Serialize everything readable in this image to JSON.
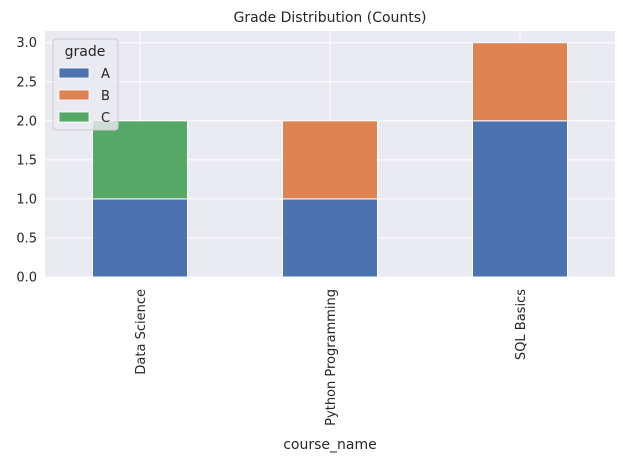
{
  "chart_data": {
    "type": "bar",
    "stacked": true,
    "title": "Grade Distribution (Counts)",
    "xlabel": "course_name",
    "ylabel": "",
    "categories": [
      "Data Science",
      "Python Programming",
      "SQL Basics"
    ],
    "series": [
      {
        "name": "A",
        "values": [
          1,
          1,
          2
        ],
        "color": "#4c72b0"
      },
      {
        "name": "B",
        "values": [
          0,
          1,
          1
        ],
        "color": "#dd8452"
      },
      {
        "name": "C",
        "values": [
          1,
          0,
          0
        ],
        "color": "#55a868"
      }
    ],
    "ylim": [
      0,
      3.15
    ],
    "yticks": [
      "0.0",
      "0.5",
      "1.0",
      "1.5",
      "2.0",
      "2.5",
      "3.0"
    ],
    "grid": true,
    "legend": {
      "title": "grade",
      "placement": "top-left"
    },
    "background": "#eaeaf2"
  }
}
